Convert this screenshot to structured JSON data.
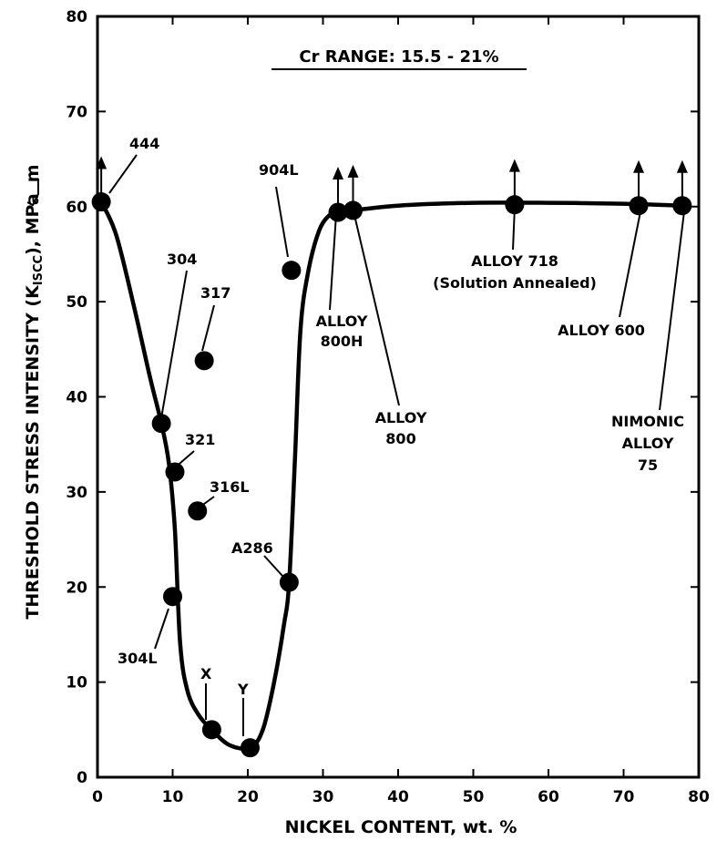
{
  "chart_data": {
    "type": "scatter",
    "title": "Cr RANGE: 15.5 - 21%",
    "xlabel": "NICKEL CONTENT, wt. %",
    "ylabel": "THRESHOLD STRESS INTENSITY (K",
    "ylabel_sub": "ISCC",
    "ylabel_unit": "), MPa",
    "ylabel_root": "m",
    "xlim": [
      0,
      80
    ],
    "ylim": [
      0,
      80
    ],
    "x_ticks": [
      0,
      10,
      20,
      30,
      40,
      50,
      60,
      70,
      80
    ],
    "y_ticks": [
      0,
      10,
      20,
      30,
      40,
      50,
      60,
      70,
      80
    ],
    "x_tick_labels": [
      "0",
      "10",
      "20",
      "30",
      "40",
      "50",
      "60",
      "70",
      "80"
    ],
    "y_tick_labels": [
      "0",
      "10",
      "20",
      "30",
      "40",
      "50",
      "60",
      "70",
      "80"
    ],
    "grid": false,
    "points": [
      {
        "x": 0.5,
        "y": 60.5,
        "label": "444",
        "arrow_up": true
      },
      {
        "x": 8.5,
        "y": 37.2,
        "label": "304"
      },
      {
        "x": 14.2,
        "y": 43.8,
        "label": "317"
      },
      {
        "x": 10.3,
        "y": 32.1,
        "label": "321"
      },
      {
        "x": 13.3,
        "y": 28.0,
        "label": "316L"
      },
      {
        "x": 10.0,
        "y": 19.0,
        "label": "304L"
      },
      {
        "x": 15.2,
        "y": 5.0,
        "label": "X"
      },
      {
        "x": 20.3,
        "y": 3.1,
        "label": "Y"
      },
      {
        "x": 25.5,
        "y": 20.5,
        "label": "A286"
      },
      {
        "x": 25.8,
        "y": 53.3,
        "label": "904L"
      },
      {
        "x": 32.0,
        "y": 59.4,
        "label": "ALLOY 800H",
        "arrow_up": true
      },
      {
        "x": 34.0,
        "y": 59.6,
        "label": "ALLOY 800",
        "arrow_up": true
      },
      {
        "x": 55.5,
        "y": 60.2,
        "label": "ALLOY 718 (Solution Annealed)",
        "arrow_up": true
      },
      {
        "x": 72.0,
        "y": 60.1,
        "label": "ALLOY 600",
        "arrow_up": true
      },
      {
        "x": 77.8,
        "y": 60.1,
        "label": "NIMONIC ALLOY 75",
        "arrow_up": true
      }
    ],
    "trend_curve": {
      "x": [
        0.5,
        2.5,
        5,
        7,
        8.5,
        9.5,
        10.3,
        11,
        12,
        13.5,
        15.2,
        17.5,
        20.3,
        22,
        23.5,
        24.8,
        25.5,
        26.3,
        27,
        28,
        29.5,
        31,
        32,
        34,
        40,
        50,
        60,
        70,
        77.8
      ],
      "y": [
        60.5,
        57,
        49,
        42,
        37.2,
        33,
        26,
        14,
        9,
        6.5,
        5.0,
        3.4,
        3.1,
        5,
        10,
        16,
        20.5,
        34,
        47,
        53,
        57.5,
        59.2,
        59.4,
        59.6,
        60.1,
        60.4,
        60.4,
        60.3,
        60.1
      ]
    }
  },
  "labels": {
    "l444": "444",
    "l304": "304",
    "l317": "317",
    "l321": "321",
    "l316L": "316L",
    "l304L": "304L",
    "lX": "X",
    "lY": "Y",
    "lA286": "A286",
    "l904L": "904L",
    "alloy": "ALLOY",
    "n800H": "800H",
    "n800": "800",
    "a718": "ALLOY 718",
    "a718sub": "(Solution Annealed)",
    "a600": "ALLOY 600",
    "nimonic": "NIMONIC",
    "n75": "75"
  }
}
